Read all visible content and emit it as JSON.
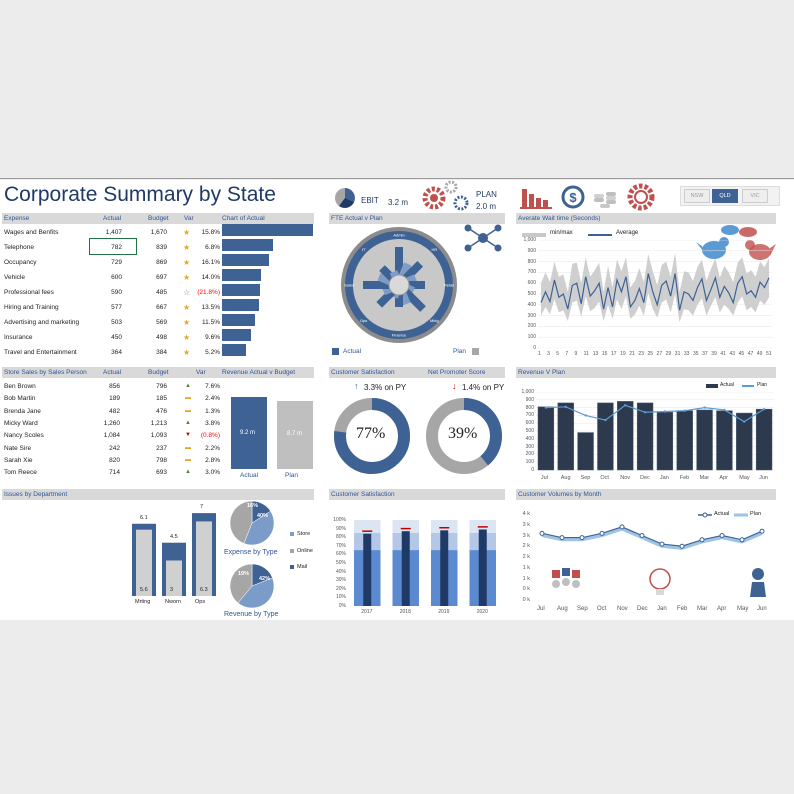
{
  "header": {
    "title": "Corporate Summary by State",
    "ebit_label": "EBIT",
    "ebit_value": "3.2 m",
    "plan_label": "PLAN",
    "plan_value": "2.0 m",
    "states": [
      "NSW",
      "QLD",
      "VIC"
    ],
    "selected_state": "QLD"
  },
  "expense": {
    "headers": {
      "expense": "Expense",
      "actual": "Actual",
      "budget": "Budget",
      "var": "Var",
      "chart": "Chart of Actual"
    },
    "rows": [
      {
        "name": "Wages and Benfits",
        "actual": "1,407",
        "budget": "1,670",
        "var": "15.8%",
        "actual_value": 1407
      },
      {
        "name": "Telephone",
        "actual": "782",
        "budget": "839",
        "var": "6.8%",
        "actual_value": 782
      },
      {
        "name": "Occupancy",
        "actual": "729",
        "budget": "869",
        "var": "16.1%",
        "actual_value": 729
      },
      {
        "name": "Vehicle",
        "actual": "600",
        "budget": "697",
        "var": "14.0%",
        "actual_value": 600
      },
      {
        "name": "Professional fees",
        "actual": "590",
        "budget": "485",
        "var": "(21.8%)",
        "actual_value": 590
      },
      {
        "name": "Hiring and Training",
        "actual": "577",
        "budget": "667",
        "var": "13.5%",
        "actual_value": 577
      },
      {
        "name": "Advertising and marketing",
        "actual": "503",
        "budget": "569",
        "var": "11.5%",
        "actual_value": 503
      },
      {
        "name": "Insurance",
        "actual": "450",
        "budget": "498",
        "var": "9.6%",
        "actual_value": 450
      },
      {
        "name": "Travel and Entertainment",
        "actual": "364",
        "budget": "384",
        "var": "5.2%",
        "actual_value": 364
      }
    ]
  },
  "store_sales": {
    "headers": {
      "name": "Store Sales by Sales Person",
      "actual": "Actual",
      "budget": "Budget",
      "var": "Var",
      "chart": "Revenue Actual v Budget"
    },
    "rows": [
      {
        "name": "Ben Brown",
        "actual": "856",
        "budget": "796",
        "var": "7.6%",
        "trend": "up"
      },
      {
        "name": "Bob Martin",
        "actual": "189",
        "budget": "185",
        "var": "2.4%",
        "trend": "flat"
      },
      {
        "name": "Brenda Jane",
        "actual": "482",
        "budget": "476",
        "var": "1.3%",
        "trend": "flat"
      },
      {
        "name": "Micky Ward",
        "actual": "1,260",
        "budget": "1,213",
        "var": "3.8%",
        "trend": "up"
      },
      {
        "name": "Nancy Scoles",
        "actual": "1,084",
        "budget": "1,093",
        "var": "(0.8%)",
        "trend": "down"
      },
      {
        "name": "Nate Sire",
        "actual": "242",
        "budget": "237",
        "var": "2.2%",
        "trend": "flat"
      },
      {
        "name": "Sarah Xie",
        "actual": "820",
        "budget": "798",
        "var": "2.8%",
        "trend": "flat"
      },
      {
        "name": "Tom Reece",
        "actual": "714",
        "budget": "693",
        "var": "3.0%",
        "trend": "up"
      }
    ],
    "bars": [
      {
        "label": "Actual",
        "value_label": "9.2 m",
        "value": 9.2
      },
      {
        "label": "Plan",
        "value_label": "8.7 m",
        "value": 8.7
      }
    ]
  },
  "fte": {
    "title": "FTE Actual v Plan",
    "legend_actual": "Actual",
    "legend_plan": "Plan",
    "ring_labels": [
      "Finance",
      "Ops",
      "Sales",
      "IT",
      "Admin",
      "HR",
      "Retail",
      "Mktg"
    ]
  },
  "wait_time": {
    "title": "Averate Wait time (Seconds)",
    "legend_band": "min/max",
    "legend_avg": "Average",
    "ylim": [
      0,
      1000
    ],
    "y_ticks": [
      "1,000",
      "900",
      "800",
      "700",
      "600",
      "500",
      "400",
      "300",
      "200",
      "100",
      "0"
    ],
    "x_ticks": [
      "1",
      "3",
      "5",
      "7",
      "9",
      "11",
      "13",
      "15",
      "17",
      "19",
      "21",
      "23",
      "25",
      "27",
      "29",
      "31",
      "33",
      "35",
      "37",
      "39",
      "41",
      "43",
      "45",
      "47",
      "49",
      "51"
    ],
    "average": [
      420,
      520,
      430,
      630,
      470,
      500,
      360,
      580,
      600,
      410,
      660,
      480,
      530,
      600,
      360,
      560,
      380,
      630,
      520,
      660,
      380,
      440,
      550,
      420,
      690,
      520,
      400,
      580,
      620,
      480,
      690,
      350,
      520,
      500,
      440,
      560,
      640,
      440,
      540,
      650,
      470,
      570,
      510,
      420,
      600,
      660,
      500,
      530,
      470,
      610,
      560,
      650
    ],
    "min": [
      300,
      380,
      310,
      450,
      330,
      350,
      250,
      420,
      440,
      290,
      480,
      340,
      370,
      430,
      250,
      400,
      270,
      450,
      360,
      480,
      270,
      310,
      390,
      300,
      510,
      360,
      280,
      420,
      450,
      330,
      500,
      240,
      360,
      350,
      300,
      400,
      460,
      300,
      390,
      470,
      330,
      400,
      360,
      300,
      420,
      480,
      350,
      380,
      330,
      440,
      400,
      470
    ],
    "max": [
      600,
      700,
      610,
      800,
      660,
      680,
      520,
      780,
      790,
      600,
      840,
      660,
      720,
      790,
      520,
      760,
      560,
      820,
      710,
      840,
      560,
      620,
      740,
      610,
      870,
      710,
      580,
      770,
      800,
      660,
      880,
      520,
      710,
      700,
      620,
      750,
      820,
      620,
      730,
      830,
      650,
      760,
      700,
      610,
      790,
      840,
      690,
      720,
      660,
      800,
      750,
      830
    ]
  },
  "customer_satisfaction_kpi": {
    "title": "Customer Satisfaction",
    "change": "3.3% on PY",
    "value": "77%",
    "fraction": 0.77
  },
  "nps": {
    "title": "Net Promoter Score",
    "change": "1.4% on PY",
    "value": "39%",
    "fraction": 0.39
  },
  "revenue_plan": {
    "title": "Revenue V Plan",
    "legend_actual": "Actual",
    "legend_plan": "Plan",
    "y_ticks": [
      "1,000",
      "900",
      "800",
      "700",
      "600",
      "500",
      "400",
      "300",
      "200",
      "100",
      "0"
    ],
    "categories": [
      "Jul",
      "Aug",
      "Sep",
      "Oct",
      "Nov",
      "Dec",
      "Jan",
      "Feb",
      "Mar",
      "Apr",
      "May",
      "Jun"
    ],
    "actual": [
      810,
      860,
      480,
      860,
      880,
      860,
      740,
      760,
      770,
      760,
      730,
      780
    ],
    "plan": [
      800,
      810,
      700,
      640,
      830,
      740,
      750,
      760,
      800,
      770,
      620,
      780
    ]
  },
  "issues": {
    "title": "Issues by Department",
    "departments": [
      {
        "name": "Mrting",
        "top": "6.1",
        "inner": "5.6",
        "outer_value": 6.1,
        "inner_value": 5.6
      },
      {
        "name": "Nworn",
        "top": "4.5",
        "inner": "3",
        "outer_value": 4.5,
        "inner_value": 3
      },
      {
        "name": "Ops",
        "top": "7",
        "inner": "6.3",
        "outer_value": 7,
        "inner_value": 6.3
      }
    ],
    "pie1_title": "Expense by Type",
    "pie1": [
      {
        "label": "16%",
        "value": 16
      },
      {
        "label": "40%",
        "value": 40
      },
      {
        "label": "",
        "value": 44
      }
    ],
    "pie2_title": "Revenue by Type",
    "pie2": [
      {
        "label": "19%",
        "value": 19
      },
      {
        "label": "42%",
        "value": 42
      },
      {
        "label": "",
        "value": 39
      }
    ],
    "legend": [
      "Store",
      "Online",
      "Mail"
    ]
  },
  "cust_sat_chart": {
    "title": "Customer Satisfaction",
    "y_ticks": [
      "100%",
      "90%",
      "80%",
      "70%",
      "60%",
      "50%",
      "40%",
      "30%",
      "20%",
      "10%",
      "0%"
    ],
    "categories": [
      "2017",
      "2018",
      "2019",
      "2020"
    ],
    "inner": [
      84,
      87,
      88,
      89
    ],
    "target": [
      87,
      90,
      91,
      92
    ]
  },
  "volumes": {
    "title": "Customer Volumes by Month",
    "legend_actual": "Actual",
    "legend_plan": "Plan",
    "y_ticks": [
      "4 k",
      "3 k",
      "3 k",
      "2 k",
      "2 k",
      "1 k",
      "1 k",
      "0 k",
      "0 k"
    ],
    "y_label_values": [
      4,
      3.5,
      3,
      2.5,
      2,
      1.5,
      1,
      0.5,
      0
    ],
    "categories": [
      "Jul",
      "Aug",
      "Sep",
      "Oct",
      "Nov",
      "Dec",
      "Jan",
      "Feb",
      "Mar",
      "Apr",
      "May",
      "Jun"
    ],
    "actual": [
      3.1,
      2.9,
      2.9,
      3.1,
      3.4,
      3.0,
      2.6,
      2.5,
      2.8,
      3.0,
      2.8,
      3.2
    ],
    "plan": [
      3.0,
      2.8,
      2.8,
      3.0,
      3.3,
      2.9,
      2.5,
      2.4,
      2.7,
      2.9,
      2.7,
      3.1
    ]
  },
  "colors": {
    "accent": "#3e6294",
    "header_bg": "#d9d9d9",
    "grey": "#a6a6a6",
    "red": "#c0504d"
  },
  "icons": [
    "pie-chart-icon",
    "gears-icon",
    "bar-chart-icon",
    "dollar-icon",
    "coins-icon",
    "gear-icon",
    "network-icon",
    "twitter-bird-icon",
    "star-icon",
    "lightbulb-icon",
    "person-icon"
  ]
}
